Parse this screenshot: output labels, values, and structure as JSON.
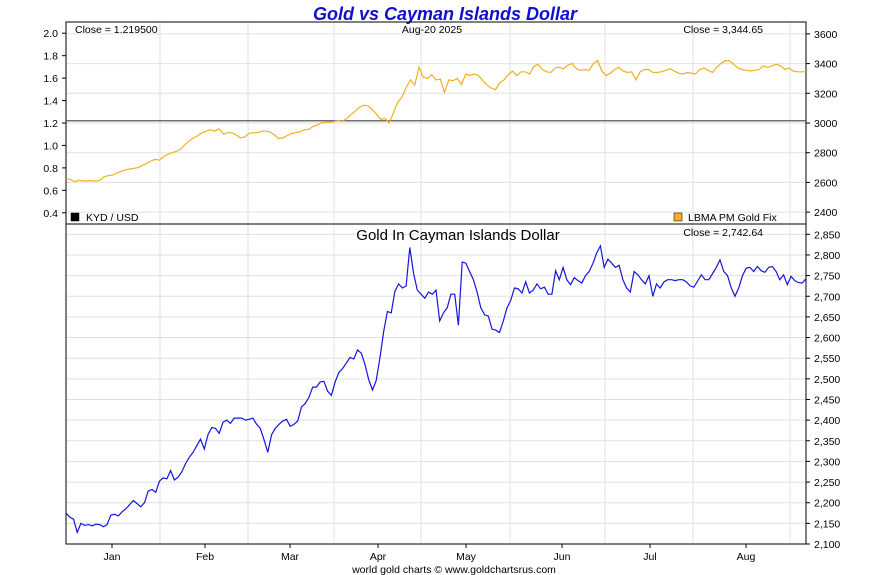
{
  "title": "Gold vs Cayman Islands Dollar",
  "footer": "world gold charts © www.goldchartsrus.com",
  "colors": {
    "gold": "#f0b020",
    "kyd_gold": "#1515dd",
    "title": "#1010cc",
    "ref_line": "#404040"
  },
  "top_panel": {
    "close_left": "Close = 1.219500",
    "date": "Aug-20  2025",
    "close_right": "Close = 3,344.65",
    "legend_left": "KYD / USD",
    "legend_left_color": "#000000",
    "legend_right": "LBMA PM Gold Fix",
    "legend_right_color": "#f0b020"
  },
  "bottom_panel": {
    "subtitle": "Gold In Cayman Islands Dollar",
    "close_right": "Close = 2,742.64"
  },
  "chart_data": [
    {
      "type": "line",
      "panel": "top",
      "x_tick_labels": [
        "Jan",
        "Feb",
        "Mar",
        "Apr",
        "May",
        "Jun",
        "Jul",
        "Aug"
      ],
      "left_axis": {
        "label": "KYD / USD",
        "ylim": [
          0.3,
          2.1
        ],
        "ticks": [
          "0.4",
          "0.6",
          "0.8",
          "1.0",
          "1.2",
          "1.4",
          "1.6",
          "1.8",
          "2.0"
        ]
      },
      "right_axis": {
        "label": "LBMA PM Gold Fix",
        "ylim": [
          2320,
          3680
        ],
        "ticks": [
          "2400",
          "2600",
          "2800",
          "3000",
          "3200",
          "3400",
          "3600"
        ]
      },
      "series": [
        {
          "name": "KYD / USD",
          "axis": "left",
          "values": [
            1.2195,
            1.2195
          ],
          "note_x": [
            "Jan 2",
            "Aug 20"
          ]
        },
        {
          "name": "LBMA PM Gold Fix",
          "axis": "right",
          "values": [
            2625,
            2620,
            2605,
            2615,
            2610,
            2610,
            2612,
            2608,
            2615,
            2640,
            2645,
            2650,
            2665,
            2675,
            2685,
            2690,
            2695,
            2700,
            2715,
            2728,
            2745,
            2755,
            2750,
            2775,
            2790,
            2800,
            2810,
            2825,
            2855,
            2880,
            2900,
            2915,
            2935,
            2945,
            2955,
            2945,
            2960,
            2925,
            2935,
            2935,
            2920,
            2900,
            2905,
            2930,
            2935,
            2935,
            2945,
            2945,
            2940,
            2920,
            2895,
            2900,
            2915,
            2930,
            2935,
            2940,
            2955,
            2955,
            2975,
            2985,
            3000,
            3005,
            3005,
            3010,
            3015,
            3010,
            3030,
            3055,
            3080,
            3105,
            3120,
            3115,
            3090,
            3060,
            3025,
            3030,
            3000,
            3070,
            3140,
            3175,
            3240,
            3290,
            3255,
            3375,
            3310,
            3300,
            3325,
            3290,
            3295,
            3205,
            3290,
            3285,
            3300,
            3260,
            3330,
            3320,
            3330,
            3320,
            3285,
            3255,
            3235,
            3225,
            3270,
            3290,
            3325,
            3350,
            3320,
            3345,
            3345,
            3330,
            3380,
            3395,
            3360,
            3345,
            3340,
            3370,
            3375,
            3365,
            3390,
            3400,
            3365,
            3355,
            3360,
            3355,
            3400,
            3420,
            3350,
            3320,
            3335,
            3360,
            3375,
            3350,
            3340,
            3345,
            3290,
            3345,
            3360,
            3360,
            3340,
            3340,
            3345,
            3355,
            3365,
            3350,
            3335,
            3330,
            3340,
            3335,
            3330,
            3360,
            3370,
            3355,
            3340,
            3375,
            3400,
            3420,
            3420,
            3395,
            3370,
            3360,
            3355,
            3350,
            3355,
            3360,
            3385,
            3375,
            3385,
            3395,
            3385,
            3360,
            3370,
            3350,
            3345,
            3345,
            3344.65
          ]
        }
      ]
    },
    {
      "type": "line",
      "panel": "bottom",
      "title": "Gold In Cayman Islands Dollar",
      "x_tick_labels": [
        "Jan",
        "Feb",
        "Mar",
        "Apr",
        "May",
        "Jun",
        "Jul",
        "Aug"
      ],
      "ylim": [
        2100,
        2875
      ],
      "y_ticks": [
        "2,100",
        "2,150",
        "2,200",
        "2,250",
        "2,300",
        "2,350",
        "2,400",
        "2,450",
        "2,500",
        "2,550",
        "2,600",
        "2,650",
        "2,700",
        "2,750",
        "2,800",
        "2,850"
      ],
      "series": [
        {
          "name": "Gold In Cayman Islands Dollar",
          "values": [
            2175,
            2165,
            2160,
            2128,
            2150,
            2145,
            2147,
            2144,
            2148,
            2147,
            2142,
            2147,
            2170,
            2172,
            2168,
            2178,
            2185,
            2195,
            2205,
            2198,
            2190,
            2200,
            2228,
            2232,
            2225,
            2252,
            2260,
            2258,
            2278,
            2255,
            2262,
            2275,
            2295,
            2310,
            2322,
            2338,
            2354,
            2330,
            2365,
            2382,
            2380,
            2368,
            2395,
            2400,
            2392,
            2405,
            2405,
            2405,
            2400,
            2402,
            2405,
            2390,
            2380,
            2352,
            2322,
            2365,
            2380,
            2390,
            2398,
            2402,
            2385,
            2390,
            2398,
            2432,
            2440,
            2455,
            2480,
            2480,
            2492,
            2494,
            2470,
            2460,
            2492,
            2515,
            2525,
            2538,
            2552,
            2548,
            2570,
            2562,
            2535,
            2498,
            2473,
            2496,
            2550,
            2615,
            2663,
            2660,
            2712,
            2730,
            2720,
            2725,
            2818,
            2755,
            2715,
            2705,
            2695,
            2710,
            2705,
            2715,
            2640,
            2660,
            2672,
            2705,
            2705,
            2630,
            2783,
            2780,
            2760,
            2740,
            2710,
            2672,
            2655,
            2652,
            2620,
            2618,
            2612,
            2640,
            2672,
            2690,
            2720,
            2718,
            2708,
            2735,
            2708,
            2715,
            2730,
            2718,
            2722,
            2705,
            2705,
            2762,
            2740,
            2770,
            2740,
            2728,
            2745,
            2738,
            2732,
            2750,
            2760,
            2780,
            2805,
            2822,
            2770,
            2790,
            2780,
            2770,
            2775,
            2740,
            2720,
            2710,
            2760,
            2752,
            2740,
            2730,
            2750,
            2700,
            2730,
            2720,
            2735,
            2740,
            2740,
            2738,
            2740,
            2740,
            2735,
            2725,
            2722,
            2737,
            2752,
            2740,
            2740,
            2755,
            2770,
            2788,
            2760,
            2750,
            2720,
            2700,
            2720,
            2750,
            2768,
            2770,
            2760,
            2772,
            2762,
            2758,
            2770,
            2772,
            2760,
            2740,
            2752,
            2728,
            2748,
            2738,
            2733,
            2732,
            2742.64
          ]
        }
      ]
    }
  ]
}
